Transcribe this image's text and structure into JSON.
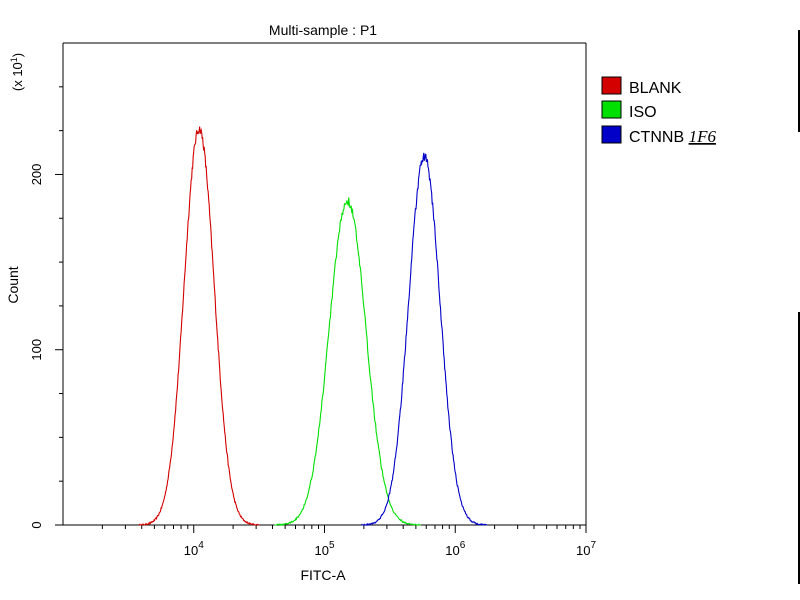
{
  "chart_data": {
    "type": "line",
    "title": "Multi-sample : P1",
    "xlabel": "FITC-A",
    "ylabel": "Count",
    "y_multiplier": "(x 10",
    "y_multiplier_exp": "1",
    "y_multiplier_close": ")",
    "x_scale": "log",
    "xlim": [
      1000,
      10000000
    ],
    "ylim": [
      0,
      275
    ],
    "x_ticks": [
      {
        "value": 10000,
        "base": "10",
        "exp": "4"
      },
      {
        "value": 100000,
        "base": "10",
        "exp": "5"
      },
      {
        "value": 1000000,
        "base": "10",
        "exp": "6"
      },
      {
        "value": 10000000,
        "base": "10",
        "exp": "7"
      }
    ],
    "y_ticks": [
      {
        "value": 0,
        "label": "0"
      },
      {
        "value": 100,
        "label": "100"
      },
      {
        "value": 200,
        "label": "200"
      }
    ],
    "grid": false,
    "legend_position": "right",
    "series": [
      {
        "name": "BLANK",
        "name_suffix": "",
        "color": "#d40000",
        "peak_x": 11000,
        "peak_y": 226,
        "sigma_decades": 0.115
      },
      {
        "name": "ISO",
        "name_suffix": "",
        "color": "#00e000",
        "peak_x": 150000,
        "peak_y": 185,
        "sigma_decades": 0.14
      },
      {
        "name": "CTNNB",
        "name_suffix": "1F6",
        "color": "#0000c8",
        "peak_x": 580000,
        "peak_y": 210,
        "sigma_decades": 0.12
      }
    ]
  }
}
